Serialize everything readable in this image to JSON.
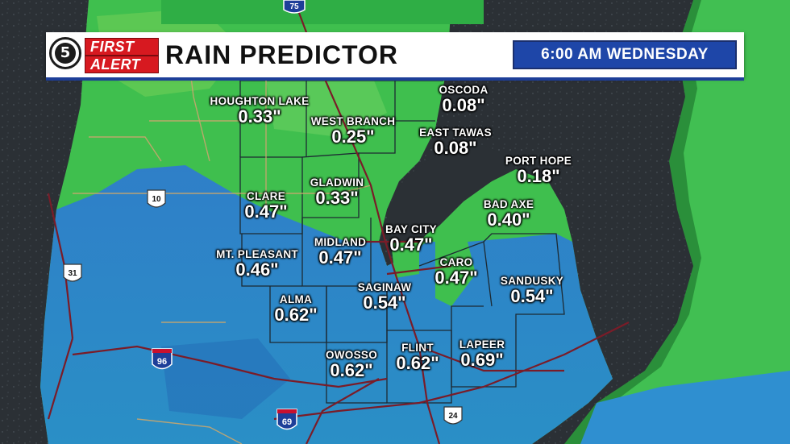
{
  "header": {
    "logo_number": "5",
    "logo_first": "FIRST",
    "logo_alert": "ALERT",
    "title": "RAIN PREDICTOR",
    "time_label": "6:00 AM   WEDNESDAY"
  },
  "colors": {
    "water": "#2a2f33",
    "land_light_rain": "#3fbf4e",
    "land_heavy_rain": "#2f8fd0",
    "banner_blue": "#1e46a8",
    "logo_red": "#d71920"
  },
  "highways": [
    {
      "shield": "interstate",
      "number": "75"
    },
    {
      "shield": "us",
      "number": "10"
    },
    {
      "shield": "us",
      "number": "31"
    },
    {
      "shield": "interstate",
      "number": "96"
    },
    {
      "shield": "interstate",
      "number": "69"
    },
    {
      "shield": "us",
      "number": "24"
    }
  ],
  "cities": [
    {
      "id": "oscoda",
      "name": "OSCODA",
      "value": "0.08\""
    },
    {
      "id": "houghton-lake",
      "name": "HOUGHTON LAKE",
      "value": "0.33\""
    },
    {
      "id": "west-branch",
      "name": "WEST BRANCH",
      "value": "0.25\""
    },
    {
      "id": "east-tawas",
      "name": "EAST TAWAS",
      "value": "0.08\""
    },
    {
      "id": "port-hope",
      "name": "PORT HOPE",
      "value": "0.18\""
    },
    {
      "id": "clare",
      "name": "CLARE",
      "value": "0.47\""
    },
    {
      "id": "gladwin",
      "name": "GLADWIN",
      "value": "0.33\""
    },
    {
      "id": "bad-axe",
      "name": "BAD AXE",
      "value": "0.40\""
    },
    {
      "id": "bay-city",
      "name": "BAY CITY",
      "value": "0.47\""
    },
    {
      "id": "mt-pleasant",
      "name": "MT. PLEASANT",
      "value": "0.46\""
    },
    {
      "id": "midland",
      "name": "MIDLAND",
      "value": "0.47\""
    },
    {
      "id": "caro",
      "name": "CARO",
      "value": "0.47\""
    },
    {
      "id": "sandusky",
      "name": "SANDUSKY",
      "value": "0.54\""
    },
    {
      "id": "alma",
      "name": "ALMA",
      "value": "0.62\""
    },
    {
      "id": "saginaw",
      "name": "SAGINAW",
      "value": "0.54\""
    },
    {
      "id": "lapeer",
      "name": "LAPEER",
      "value": "0.69\""
    },
    {
      "id": "owosso",
      "name": "OWOSSO",
      "value": "0.62\""
    },
    {
      "id": "flint",
      "name": "FLINT",
      "value": "0.62\""
    }
  ]
}
